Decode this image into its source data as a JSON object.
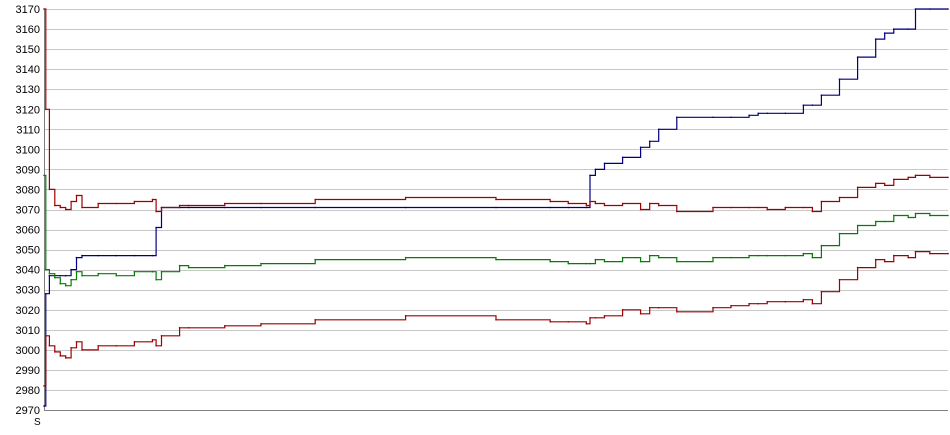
{
  "chart_data": {
    "type": "line",
    "title": "",
    "xlabel": "",
    "ylabel": "",
    "ylim": [
      2970,
      3170
    ],
    "y_ticks": [
      2970,
      2980,
      2990,
      3000,
      3010,
      3020,
      3030,
      3040,
      3050,
      3060,
      3070,
      3080,
      3090,
      3100,
      3110,
      3120,
      3130,
      3140,
      3150,
      3160,
      3170
    ],
    "x_tick_labels_note_illegible": true,
    "x_tick_first_label": "S",
    "grid": true,
    "legend": "none",
    "colors": {
      "blue": "#000080",
      "red": "#a00000",
      "green": "#008000",
      "grid": "#c8c8c8"
    },
    "x": [
      0,
      1,
      3,
      6,
      9,
      12,
      15,
      18,
      21,
      30,
      40,
      50,
      60,
      62,
      65,
      75,
      80,
      100,
      120,
      150,
      200,
      250,
      280,
      290,
      300,
      302,
      305,
      310,
      320,
      330,
      335,
      340,
      350,
      370,
      380,
      390,
      395,
      400,
      410,
      420,
      425,
      430,
      440,
      450,
      460,
      465,
      470,
      478,
      482,
      490,
      500
    ],
    "series": [
      {
        "color": "#000080",
        "values": [
          2972,
          3028,
          3037,
          3037,
          3037,
          3037,
          3040,
          3046,
          3047,
          3047,
          3047,
          3047,
          3047,
          3061,
          3071,
          3071,
          3071,
          3071,
          3071,
          3071,
          3071,
          3071,
          3071,
          3071,
          3071,
          3087,
          3090,
          3093,
          3096,
          3101,
          3104,
          3110,
          3116,
          3116,
          3116,
          3117,
          3118,
          3118,
          3118,
          3122,
          3122,
          3127,
          3135,
          3146,
          3155,
          3158,
          3160,
          3160,
          3170,
          3170,
          3170
        ]
      },
      {
        "color": "#a00000",
        "values": [
          3170,
          3120,
          3080,
          3072,
          3071,
          3070,
          3074,
          3077,
          3071,
          3073,
          3073,
          3074,
          3075,
          3069,
          3071,
          3072,
          3072,
          3073,
          3073,
          3075,
          3076,
          3075,
          3074,
          3073,
          3072,
          3074,
          3073,
          3072,
          3073,
          3070,
          3073,
          3072,
          3069,
          3071,
          3071,
          3071,
          3071,
          3070,
          3071,
          3071,
          3069,
          3074,
          3076,
          3081,
          3083,
          3082,
          3085,
          3086,
          3087,
          3086,
          3086
        ]
      },
      {
        "color": "#008000",
        "values": [
          3087,
          3040,
          3038,
          3036,
          3033,
          3032,
          3035,
          3039,
          3037,
          3038,
          3037,
          3039,
          3039,
          3035,
          3039,
          3042,
          3041,
          3042,
          3043,
          3045,
          3046,
          3045,
          3044,
          3043,
          3043,
          3043,
          3045,
          3044,
          3046,
          3044,
          3047,
          3046,
          3044,
          3046,
          3046,
          3047,
          3047,
          3047,
          3047,
          3048,
          3046,
          3052,
          3058,
          3062,
          3064,
          3064,
          3067,
          3066,
          3068,
          3067,
          3067
        ]
      },
      {
        "color": "#a00000",
        "values": [
          2982,
          3007,
          3002,
          2999,
          2997,
          2996,
          3001,
          3004,
          3000,
          3002,
          3002,
          3004,
          3005,
          3002,
          3007,
          3011,
          3011,
          3012,
          3013,
          3015,
          3017,
          3015,
          3014,
          3014,
          3013,
          3016,
          3016,
          3017,
          3020,
          3018,
          3021,
          3021,
          3019,
          3021,
          3022,
          3023,
          3023,
          3024,
          3024,
          3025,
          3023,
          3029,
          3035,
          3041,
          3045,
          3044,
          3047,
          3046,
          3049,
          3048,
          3048
        ]
      }
    ]
  }
}
